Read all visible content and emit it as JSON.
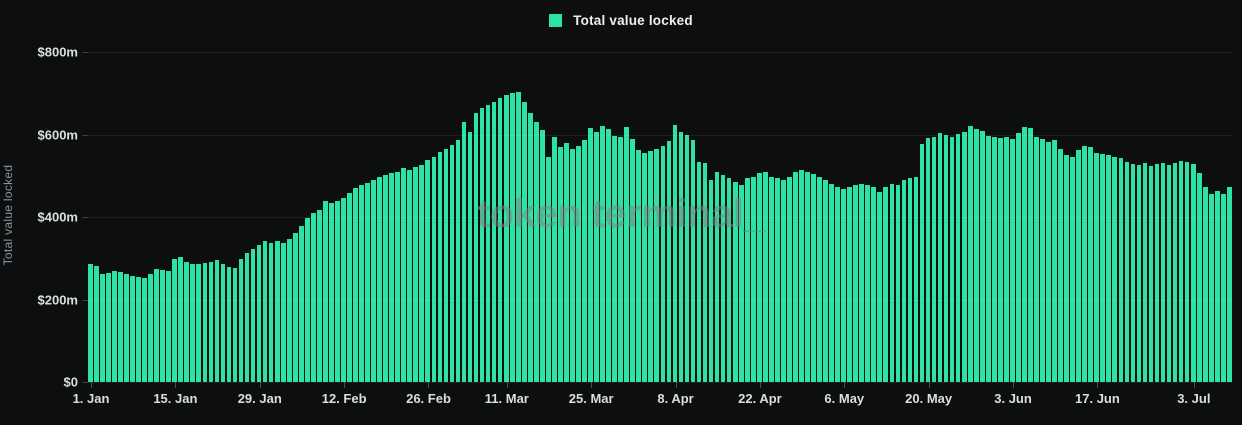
{
  "legend": {
    "label": "Total value locked"
  },
  "watermark": "token terminal_",
  "colors": {
    "background": "#0d0e0f",
    "bar": "#2de3a4",
    "grid": "rgba(255,255,255,0.07)",
    "axis_text": "#dcdfdf",
    "muted_text": "#8d9395"
  },
  "chart_data": {
    "type": "bar",
    "title": "Total value locked",
    "xlabel": "",
    "ylabel": "Total value locked",
    "unit": "$m",
    "ylim": [
      0,
      800
    ],
    "grid": "horizontal",
    "legend_position": "top-center",
    "y_ticks": [
      {
        "label": "$800m",
        "value": 800
      },
      {
        "label": "$600m",
        "value": 600
      },
      {
        "label": "$400m",
        "value": 400
      },
      {
        "label": "$200m",
        "value": 200
      },
      {
        "label": "$0",
        "value": 0
      }
    ],
    "x_ticks": [
      {
        "label": "1. Jan",
        "day": 0
      },
      {
        "label": "15. Jan",
        "day": 14
      },
      {
        "label": "29. Jan",
        "day": 28
      },
      {
        "label": "12. Feb",
        "day": 42
      },
      {
        "label": "26. Feb",
        "day": 56
      },
      {
        "label": "11. Mar",
        "day": 69
      },
      {
        "label": "25. Mar",
        "day": 83
      },
      {
        "label": "8. Apr",
        "day": 97
      },
      {
        "label": "22. Apr",
        "day": 111
      },
      {
        "label": "6. May",
        "day": 125
      },
      {
        "label": "20. May",
        "day": 139
      },
      {
        "label": "3. Jun",
        "day": 153
      },
      {
        "label": "17. Jun",
        "day": 167
      },
      {
        "label": "3. Jul",
        "day": 183
      }
    ],
    "series_name": "Total value locked",
    "values_unit_millions_usd": true,
    "values": [
      285,
      281,
      262,
      265,
      268,
      266,
      263,
      258,
      255,
      253,
      263,
      274,
      271,
      268,
      299,
      302,
      292,
      287,
      285,
      288,
      292,
      297,
      287,
      278,
      277,
      299,
      313,
      322,
      333,
      341,
      336,
      341,
      338,
      346,
      362,
      378,
      398,
      410,
      418,
      438,
      434,
      438,
      446,
      458,
      470,
      478,
      482,
      490,
      498,
      502,
      506,
      510,
      518,
      514,
      522,
      526,
      538,
      546,
      558,
      566,
      574,
      586,
      631,
      606,
      652,
      664,
      671,
      679,
      688,
      695,
      700,
      703,
      678,
      652,
      630,
      610,
      545,
      593,
      569,
      579,
      566,
      571,
      586,
      615,
      606,
      620,
      613,
      596,
      593,
      618,
      588,
      562,
      554,
      559,
      565,
      572,
      584,
      622,
      606,
      598,
      586,
      533,
      530,
      489,
      508,
      501,
      494,
      484,
      477,
      494,
      496,
      506,
      508,
      498,
      494,
      490,
      498,
      508,
      513,
      510,
      505,
      496,
      489,
      481,
      472,
      469,
      472,
      477,
      481,
      477,
      472,
      460,
      472,
      481,
      478,
      490,
      494,
      496,
      578,
      591,
      593,
      603,
      598,
      593,
      601,
      606,
      620,
      613,
      608,
      596,
      593,
      591,
      593,
      588,
      603,
      618,
      615,
      593,
      588,
      581,
      586,
      566,
      550,
      545,
      562,
      571,
      569,
      554,
      552,
      550,
      545,
      542,
      533,
      528,
      525,
      530,
      523,
      528,
      530,
      525,
      530,
      535,
      533,
      528,
      506,
      472,
      457,
      462,
      455,
      472
    ]
  }
}
